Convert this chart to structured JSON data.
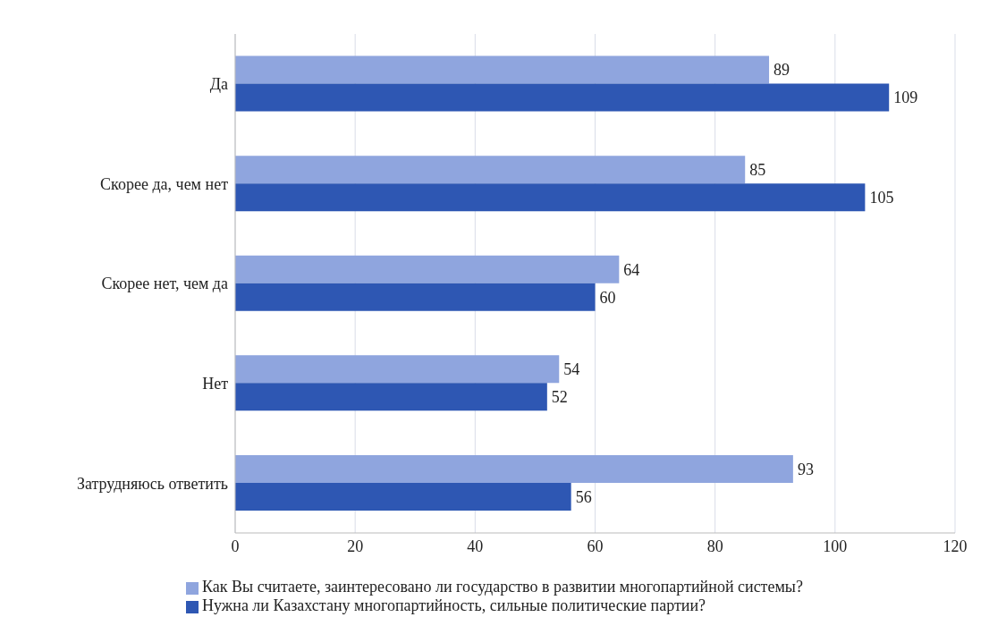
{
  "chart_data": {
    "type": "bar",
    "orientation": "horizontal",
    "categories": [
      "Да",
      "Скорее да, чем нет",
      "Скорее нет, чем да",
      "Нет",
      "Затрудняюсь ответить"
    ],
    "series": [
      {
        "name": "Как Вы считаете,  заинтересовано ли государство в развитии многопартийной системы?",
        "color": "#8fa5de",
        "values": [
          89,
          85,
          64,
          54,
          93
        ]
      },
      {
        "name": "Нужна ли Казахстану многопартийность, сильные политические партии?",
        "color": "#2e57b3",
        "values": [
          109,
          105,
          60,
          52,
          56
        ]
      }
    ],
    "xlim": [
      0,
      120
    ],
    "xticks": [
      0,
      20,
      40,
      60,
      80,
      100,
      120
    ],
    "grid": "x",
    "legend": "bottom",
    "data_labels": true
  }
}
